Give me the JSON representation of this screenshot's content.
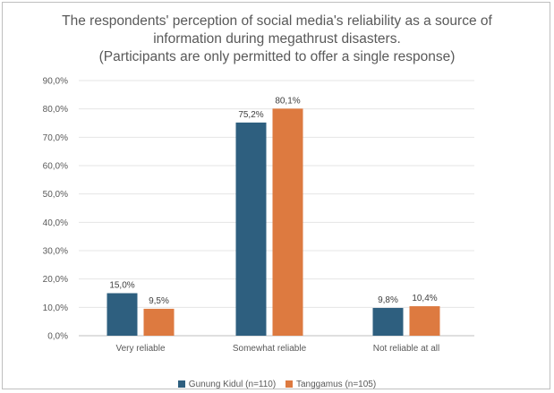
{
  "chart_data": {
    "type": "bar",
    "title_lines": [
      "The respondents' perception of social media's reliability as a source of",
      "information during megathrust disasters.",
      "(Participants are only permitted to offer a single response)"
    ],
    "categories": [
      "Very reliable",
      "Somewhat reliable",
      "Not reliable at  all"
    ],
    "series": [
      {
        "name": "Gunung Kidul (n=110)",
        "color": "#2e5f7f",
        "values": [
          15.0,
          75.2,
          9.8
        ],
        "labels": [
          "15,0%",
          "75,2%",
          "9,8%"
        ]
      },
      {
        "name": "Tanggamus (n=105)",
        "color": "#dd7a40",
        "values": [
          9.5,
          80.1,
          10.4
        ],
        "labels": [
          "9,5%",
          "80,1%",
          "10,4%"
        ]
      }
    ],
    "ylim": [
      0,
      90
    ],
    "yticks": [
      0,
      10,
      20,
      30,
      40,
      50,
      60,
      70,
      80,
      90
    ],
    "ytick_labels": [
      "0,0%",
      "10,0%",
      "20,0%",
      "30,0%",
      "40,0%",
      "50,0%",
      "60,0%",
      "70,0%",
      "80,0%",
      "90,0%"
    ],
    "grid": true,
    "legend_position": "bottom"
  }
}
